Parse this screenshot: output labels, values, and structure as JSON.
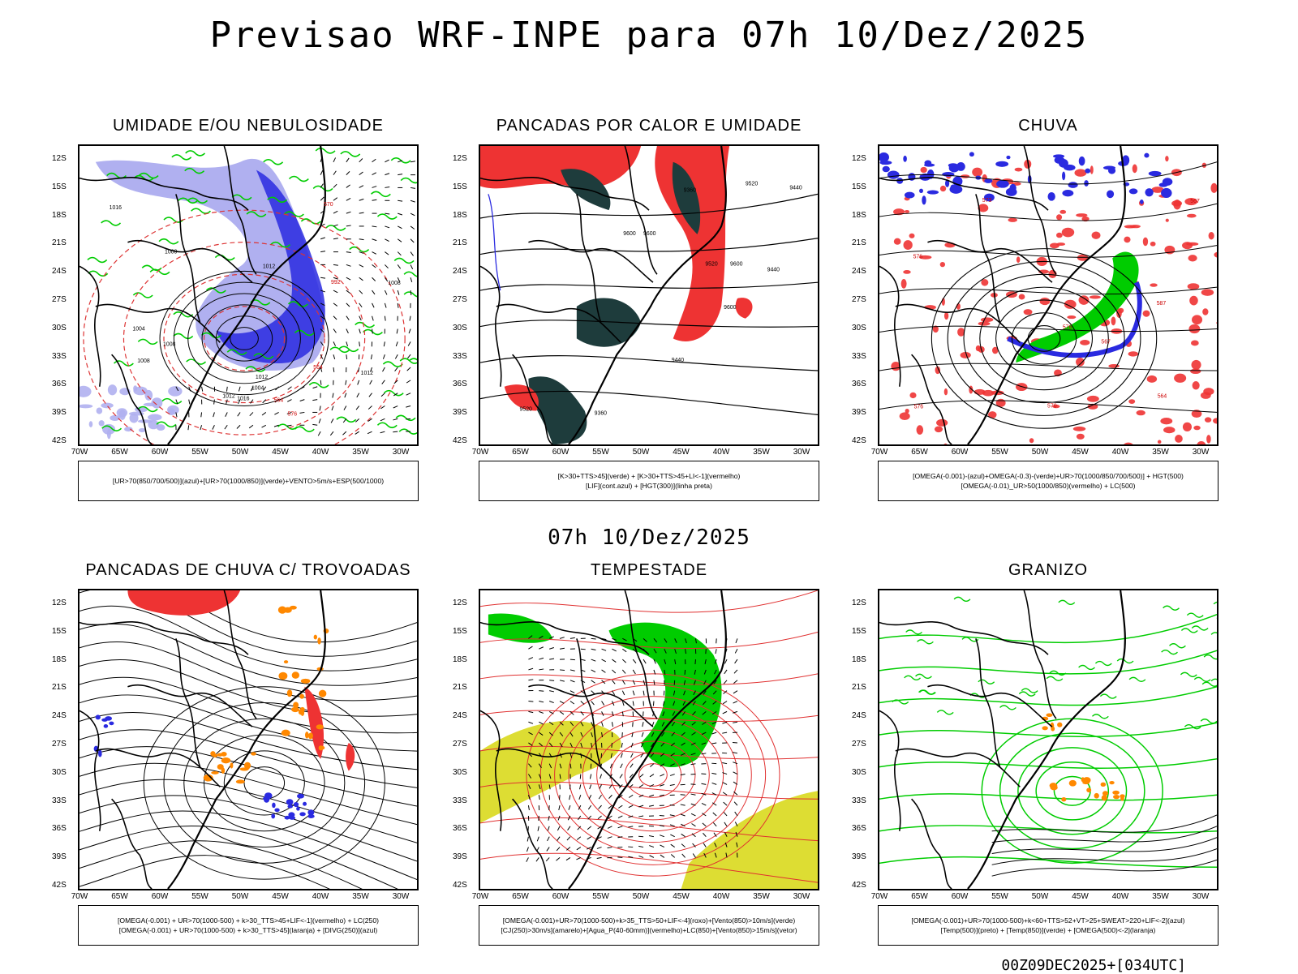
{
  "title": "Previsao WRF-INPE  para 07h 10/Dez/2025",
  "subtitle": "07h 10/Dez/2025",
  "footer": "00Z09DEC2025+[034UTC]",
  "axes": {
    "lat_labels": [
      "12S",
      "15S",
      "18S",
      "21S",
      "24S",
      "27S",
      "30S",
      "33S",
      "36S",
      "39S",
      "42S"
    ],
    "lon_labels": [
      "70W",
      "65W",
      "60W",
      "55W",
      "50W",
      "45W",
      "40W",
      "35W",
      "30W"
    ]
  },
  "colors": {
    "blue": "#2a2ae0",
    "light_blue": "#b0b0f0",
    "green": "#00cc00",
    "red": "#ee3333",
    "dark_green": "#1e3c3c",
    "orange": "#ff8800",
    "yellow": "#dddd33"
  },
  "panels": [
    {
      "id": "umidade",
      "title": "UMIDADE E/OU NEBULOSIDADE",
      "legend": [
        "[UR>70(850/700/500)](azul)+[UR>70(1000/850)](verde)+VENTO>5m/s+ESP(500/1000)"
      ],
      "contour_labels": [
        "1012",
        "1012",
        "1012",
        "1016",
        "1008",
        "1008",
        "1004",
        "1004",
        "992",
        "1000",
        "1008",
        "1012",
        "1016",
        "576",
        "570",
        "564",
        "564"
      ]
    },
    {
      "id": "pancadas_calor",
      "title": "PANCADAS POR CALOR E UMIDADE",
      "legend": [
        "[K>30+TTS>45](verde) + [K>30+TTS>45+LI<-1](vermelho)",
        "[LIF](cont.azul) + [HGT(300)](linha preta)"
      ],
      "contour_labels": [
        "9600",
        "9600",
        "9600",
        "9600",
        "9520",
        "9520",
        "9520",
        "9440",
        "9440",
        "9360",
        "9440",
        "9360"
      ]
    },
    {
      "id": "chuva",
      "title": "CHUVA",
      "legend": [
        "[OMEGA(-0.001)-(azul)+OMEGA(-0.3)-(verde)+UR>70(1000/850/700/500)] + HGT(500)",
        "[OMEGA(-0.01)_UR>50(1000/850)(vermelho) + LC(500)"
      ],
      "contour_labels": [
        "576",
        "576",
        "573",
        "570",
        "567",
        "567",
        "564",
        "587",
        "576"
      ]
    },
    {
      "id": "trovoadas",
      "title": "PANCADAS DE CHUVA C/ TROVOADAS",
      "legend": [
        "[OMEGA(-0.001) + UR>70(1000-500) + k>30_TTS>45+LIF<-1](vermelho) + LC(250)",
        "[OMEGA(-0.001) + UR>70(1000-500) + k>30_TTS>45](laranja) + [DIVG(250)](azul)"
      ],
      "contour_labels": []
    },
    {
      "id": "tempestade",
      "title": "TEMPESTADE",
      "legend": [
        "[OMEGA(-0.001)+UR>70(1000-500)+k>35_TTS>50+LIF<-4](roxo)+[Vento(850)>10m/s](verde)",
        "[CJ(250)>30m/s](amarelo)+[Agua_P(40-60mm)](vermelho)+LC(850)+[Vento(850)>15m/s](vetor)"
      ],
      "contour_labels": []
    },
    {
      "id": "granizo",
      "title": "GRANIZO",
      "legend": [
        "[OMEGA(-0.001)+UR>70(1000-500)+k<60+TTS>52+VT>25+SWEAT>220+LIF<-2](azul)",
        "[Temp(500)](preto) + [Temp(850)](verde) + [OMEGA(500)<-2](laranja)"
      ],
      "contour_labels": []
    }
  ]
}
